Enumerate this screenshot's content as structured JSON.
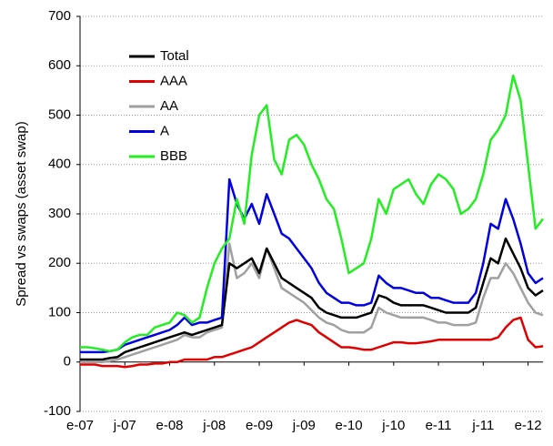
{
  "chart_data": {
    "type": "line",
    "ylabel": "Spread vs swaps (asset swap)",
    "categories": [
      "e-07",
      null,
      null,
      null,
      null,
      null,
      "j-07",
      null,
      null,
      null,
      null,
      null,
      "e-08",
      null,
      null,
      null,
      null,
      null,
      "j-08",
      null,
      null,
      null,
      null,
      null,
      "e-09",
      null,
      null,
      null,
      null,
      null,
      "j-09",
      null,
      null,
      null,
      null,
      null,
      "e-10",
      null,
      null,
      null,
      null,
      null,
      "j-10",
      null,
      null,
      null,
      null,
      null,
      "e-11",
      null,
      null,
      null,
      null,
      null,
      "j-11",
      null,
      null,
      null,
      null,
      null,
      "e-12",
      null,
      null
    ],
    "series": [
      {
        "name": "Total",
        "color": "#000000",
        "values": [
          5,
          5,
          5,
          5,
          8,
          10,
          20,
          25,
          30,
          35,
          40,
          45,
          50,
          55,
          60,
          55,
          60,
          65,
          70,
          75,
          200,
          190,
          200,
          210,
          180,
          230,
          200,
          170,
          160,
          150,
          140,
          130,
          110,
          100,
          95,
          90,
          90,
          90,
          95,
          100,
          135,
          130,
          120,
          115,
          115,
          115,
          115,
          110,
          105,
          100,
          100,
          100,
          100,
          110,
          160,
          210,
          200,
          250,
          220,
          190,
          150,
          135,
          145
        ]
      },
      {
        "name": "AAA",
        "color": "#e00000",
        "values": [
          -5,
          -5,
          -5,
          -8,
          -8,
          -8,
          -10,
          -8,
          -5,
          -5,
          -3,
          -3,
          0,
          0,
          5,
          5,
          5,
          5,
          10,
          10,
          15,
          20,
          25,
          30,
          40,
          50,
          60,
          70,
          80,
          85,
          80,
          75,
          60,
          50,
          40,
          30,
          30,
          28,
          25,
          25,
          30,
          35,
          40,
          40,
          38,
          38,
          40,
          42,
          45,
          45,
          45,
          45,
          45,
          45,
          45,
          45,
          50,
          70,
          85,
          90,
          45,
          30,
          32
        ]
      },
      {
        "name": "AA",
        "color": "#a0a0a0",
        "values": [
          0,
          0,
          0,
          0,
          2,
          5,
          10,
          15,
          20,
          25,
          30,
          35,
          40,
          45,
          55,
          50,
          50,
          60,
          65,
          70,
          240,
          170,
          180,
          200,
          170,
          230,
          190,
          150,
          140,
          130,
          120,
          105,
          90,
          80,
          75,
          65,
          60,
          60,
          60,
          70,
          110,
          100,
          95,
          90,
          90,
          90,
          90,
          85,
          80,
          80,
          75,
          75,
          75,
          80,
          130,
          170,
          170,
          200,
          180,
          150,
          120,
          100,
          95
        ]
      },
      {
        "name": "A",
        "color": "#0000e0",
        "values": [
          20,
          20,
          20,
          20,
          22,
          25,
          35,
          40,
          45,
          50,
          55,
          60,
          65,
          75,
          90,
          75,
          80,
          80,
          85,
          90,
          370,
          320,
          290,
          320,
          280,
          340,
          300,
          260,
          250,
          230,
          210,
          190,
          160,
          140,
          130,
          120,
          120,
          115,
          115,
          120,
          175,
          160,
          150,
          150,
          145,
          140,
          140,
          130,
          130,
          125,
          120,
          120,
          120,
          140,
          200,
          280,
          270,
          330,
          290,
          240,
          180,
          160,
          170
        ]
      },
      {
        "name": "BBB",
        "color": "#22ee22",
        "values": [
          30,
          30,
          28,
          25,
          22,
          25,
          40,
          50,
          55,
          55,
          70,
          75,
          80,
          100,
          95,
          80,
          90,
          150,
          200,
          230,
          250,
          330,
          280,
          420,
          500,
          520,
          410,
          380,
          450,
          460,
          440,
          400,
          370,
          330,
          310,
          250,
          180,
          190,
          200,
          250,
          330,
          300,
          350,
          360,
          370,
          340,
          320,
          360,
          380,
          370,
          350,
          300,
          310,
          330,
          380,
          450,
          470,
          500,
          580,
          530,
          400,
          270,
          290
        ]
      }
    ],
    "ylim": [
      -100,
      700
    ],
    "yticks": [
      -100,
      0,
      100,
      200,
      300,
      400,
      500,
      600,
      700
    ],
    "grid": true,
    "legend": "upper left"
  }
}
